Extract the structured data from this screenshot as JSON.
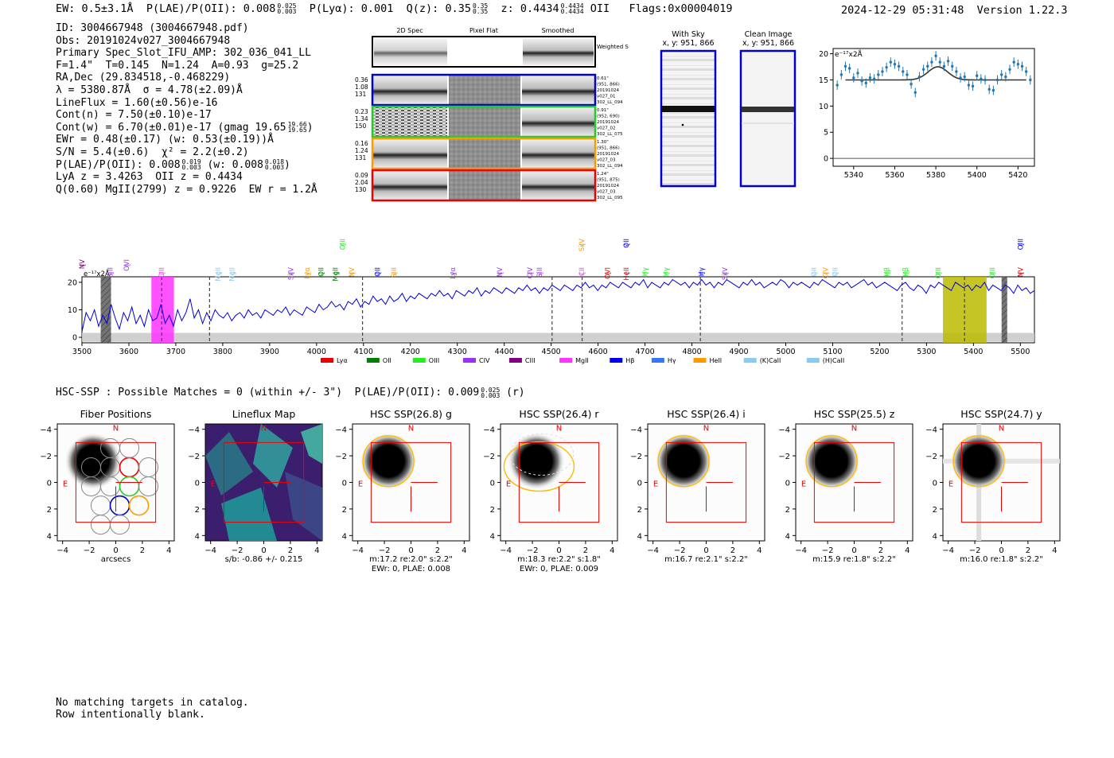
{
  "header": {
    "ew": "EW: 0.5±3.1Å",
    "plae_label": "P(LAE)/P(OII): 0.008",
    "plae_hi": "0.025",
    "plae_lo": "0.003",
    "plya": "P(Lyα): 0.001",
    "q_label": "Q(z): 0.35",
    "q_hi": "0.35",
    "q_lo": "0.35",
    "z_label": "z: 0.4434",
    "z_hi": "0.4434",
    "z_lo": "0.4434",
    "z_line": "OII",
    "flags": "Flags:0x00004019",
    "datestamp": "2024-12-29 05:31:48  Version 1.22.3"
  },
  "info": {
    "id": "ID: 3004667948 (3004667948.pdf)",
    "obs": "Obs: 20191024v027_3004667948",
    "primary": "Primary Spec_Slot_IFU_AMP: 302_036_041_LL",
    "fiber": "F=1.4\"  T=0.145  N=1.24  A=0.93  g=25.2",
    "radec": "RA,Dec (29.834518,-0.468229)",
    "lambda": "λ = 5380.87Å  σ = 4.78(±2.09)Å",
    "lineflux": "LineFlux = 1.60(±0.56)e-16",
    "contn": "Cont(n) = 7.50(±0.10)e-17",
    "contw": "Cont(w) = 6.70(±0.01)e-17 (gmag 19.65",
    "contw_hi": "19.66",
    "contw_lo": "19.65",
    "ewr": "EWr = 0.48(±0.17) (w: 0.53(±0.19))Å",
    "sn": "S/N = 5.4(±0.6)  χ² = 2.2(±0.2)",
    "plae": "P(LAE)/P(OII): 0.008",
    "plae_hi": "0.019",
    "plae_lo": "0.003",
    "plae_w": "(w: 0.008",
    "plae_w_hi": "0.018",
    "plae_w_lo": "0.003",
    "lya_z": "LyA z = 3.4263  OII z = 0.4434",
    "mgii": "Q(0.60) MgII(2799) z = 0.9226  EW r = 1.2Å"
  },
  "cutouts": {
    "col_headers": [
      "2D Spec",
      "Pixel Flat",
      "Smoothed"
    ],
    "weighted_sum_label": "Weighted Sum",
    "rows": [
      {
        "stats": [
          "0.36",
          "1.08",
          "131"
        ],
        "info": [
          "0.61\"",
          "(951, 866)",
          "20191024",
          "v027_01",
          "302_LL_094"
        ],
        "color": "#0000cc"
      },
      {
        "stats": [
          "0.23",
          "1.34",
          "150"
        ],
        "info": [
          "0.91\"",
          "(952, 690)",
          "20191024",
          "v027_02",
          "302_LL_075"
        ],
        "color": "#22cc22"
      },
      {
        "stats": [
          "0.16",
          "1.24",
          "131"
        ],
        "info": [
          "1.30\"",
          "(951, 866)",
          "20191024",
          "v027_03",
          "302_LL_094"
        ],
        "color": "#ff9900"
      },
      {
        "stats": [
          "0.09",
          "2.04",
          "130"
        ],
        "info": [
          "1.24\"",
          "(951, 875)",
          "20191024",
          "v027_03",
          "302_LL_095"
        ],
        "color": "#ee0000"
      }
    ],
    "with_sky": "With Sky",
    "with_sky_xy": "x, y: 951, 866",
    "clean": "Clean Image",
    "clean_xy": "x, y: 951, 866"
  },
  "zoom_chart": {
    "type": "scatter",
    "ylabel": "e⁻¹⁷x2Å",
    "xlim": [
      5330,
      5428
    ],
    "ylim": [
      -1.5,
      21
    ],
    "xticks": [
      5340,
      5360,
      5380,
      5400,
      5420
    ],
    "yticks": [
      0,
      5,
      10,
      15,
      20
    ],
    "continuum": 15,
    "gauss_center": 5381,
    "gauss_sigma": 4.78,
    "gauss_amp": 2.5,
    "x": [
      5332,
      5334,
      5336,
      5338,
      5340,
      5342,
      5344,
      5346,
      5348,
      5350,
      5352,
      5354,
      5356,
      5358,
      5360,
      5362,
      5364,
      5366,
      5368,
      5370,
      5372,
      5374,
      5376,
      5378,
      5380,
      5382,
      5384,
      5386,
      5388,
      5390,
      5392,
      5394,
      5396,
      5398,
      5400,
      5402,
      5404,
      5406,
      5408,
      5410,
      5412,
      5414,
      5416,
      5418,
      5420,
      5422,
      5424,
      5426
    ],
    "y": [
      14.0,
      16.0,
      17.6,
      17.2,
      15.4,
      16.3,
      14.8,
      14.4,
      15.4,
      15.2,
      16.0,
      16.6,
      17.4,
      18.4,
      18.0,
      17.6,
      16.6,
      16.0,
      14.2,
      12.6,
      15.6,
      17.0,
      17.6,
      18.4,
      19.6,
      18.4,
      17.6,
      18.6,
      17.6,
      16.6,
      15.4,
      15.6,
      14.0,
      13.8,
      15.8,
      15.2,
      15.0,
      13.2,
      13.0,
      15.0,
      16.0,
      15.6,
      17.0,
      18.4,
      18.0,
      17.6,
      16.6,
      15.0
    ],
    "err": 0.9
  },
  "main_chart": {
    "type": "line",
    "ylabel": "e⁻¹⁷x2Å",
    "xlim": [
      3500,
      5530
    ],
    "ylim": [
      -2,
      22
    ],
    "xticks": [
      3500,
      3600,
      3700,
      3800,
      3900,
      4000,
      4100,
      4200,
      4300,
      4400,
      4500,
      4600,
      4700,
      4800,
      4900,
      5000,
      5100,
      5200,
      5300,
      5400,
      5500
    ],
    "yticks": [
      0,
      10,
      20
    ],
    "flux": [
      2,
      9,
      6,
      10,
      4,
      8,
      5,
      12,
      7,
      3,
      9,
      6,
      11,
      5,
      8,
      4,
      10,
      6,
      7,
      12,
      5,
      8,
      4,
      10,
      6,
      9,
      14,
      7,
      10,
      5,
      9,
      6,
      10,
      8,
      7,
      9,
      6,
      8,
      9,
      7,
      10,
      8,
      9,
      7,
      10,
      9,
      8,
      10,
      9,
      11,
      8,
      10,
      9,
      8,
      11,
      10,
      9,
      12,
      10,
      11,
      13,
      11,
      12,
      10,
      13,
      12,
      14,
      11,
      13,
      12,
      15,
      13,
      14,
      12,
      15,
      13,
      14,
      16,
      13,
      15,
      14,
      16,
      15,
      14,
      16,
      15,
      17,
      15,
      16,
      14,
      17,
      16,
      15,
      17,
      16,
      18,
      15,
      17,
      16,
      18,
      17,
      16,
      18,
      17,
      16,
      18,
      17,
      19,
      17,
      18,
      16,
      18,
      17,
      19,
      18,
      17,
      19,
      18,
      17,
      19,
      18,
      20,
      18,
      19,
      17,
      19,
      18,
      20,
      19,
      18,
      20,
      19,
      18,
      20,
      19,
      21,
      18,
      20,
      19,
      18,
      20,
      19,
      21,
      20,
      19,
      20,
      18,
      20,
      19,
      21,
      19,
      20,
      18,
      20,
      19,
      21,
      20,
      19,
      18,
      20,
      19,
      21,
      19,
      20,
      18,
      19,
      20,
      19,
      21,
      20,
      18,
      20,
      19,
      20,
      19,
      18,
      20,
      19,
      21,
      20,
      19,
      18,
      20,
      19,
      20,
      18,
      19,
      20,
      21,
      19,
      20,
      18,
      19,
      20,
      19,
      18,
      17,
      19,
      20,
      18,
      17,
      19,
      18,
      16,
      19,
      18,
      20,
      19,
      18,
      17,
      20,
      19,
      18,
      19,
      17,
      19,
      18,
      20,
      17,
      19,
      18,
      17,
      19,
      18,
      16,
      19,
      17,
      18,
      16,
      17
    ],
    "legend": [
      {
        "label": "Lyα",
        "color": "#ee0000"
      },
      {
        "label": "OII",
        "color": "#008000"
      },
      {
        "label": "OIII",
        "color": "#22ee22"
      },
      {
        "label": "CIV",
        "color": "#9933ee"
      },
      {
        "label": "CIII",
        "color": "#800080"
      },
      {
        "label": "MgII",
        "color": "#ff33ff"
      },
      {
        "label": "Hβ",
        "color": "#0000ee"
      },
      {
        "label": "Hγ",
        "color": "#3377ff"
      },
      {
        "label": "HeII",
        "color": "#ff9900"
      },
      {
        "label": "(K)CaII",
        "color": "#88ccee"
      },
      {
        "label": "(H)CaII",
        "color": "#88ccee"
      }
    ],
    "line_labels": [
      {
        "label": "NV",
        "wave": 3500,
        "color": "#800080",
        "row": 1
      },
      {
        "label": "SiII",
        "wave": 3560,
        "color": "#9933ee",
        "row": 2
      },
      {
        "label": "OVI",
        "wave": 3595,
        "color": "#9933ee",
        "row": 1
      },
      {
        "label": "CIII",
        "wave": 3670,
        "color": "#ff33ff",
        "row": 2
      },
      {
        "label": "MgII",
        "wave": 3790,
        "color": "#88ccee",
        "row": 2
      },
      {
        "label": "MgII",
        "wave": 3820,
        "color": "#88ccee",
        "row": 2
      },
      {
        "label": "SiIV",
        "wave": 3945,
        "color": "#9933ee",
        "row": 2
      },
      {
        "label": "Lyα",
        "wave": 3980,
        "color": "#ff9900",
        "row": 2
      },
      {
        "label": "OII",
        "wave": 4010,
        "color": "#008000",
        "row": 2
      },
      {
        "label": "MgII",
        "wave": 4040,
        "color": "#008000",
        "row": 2
      },
      {
        "label": "OIII",
        "wave": 4055,
        "color": "#22ee22",
        "row": 0
      },
      {
        "label": "NV",
        "wave": 4075,
        "color": "#ff9900",
        "row": 2
      },
      {
        "label": "OII",
        "wave": 4130,
        "color": "#0000ee",
        "row": 2
      },
      {
        "label": "SiII",
        "wave": 4165,
        "color": "#ff9900",
        "row": 2
      },
      {
        "label": "Lyα",
        "wave": 4290,
        "color": "#9933ee",
        "row": 2
      },
      {
        "label": "NV",
        "wave": 4390,
        "color": "#9933ee",
        "row": 2
      },
      {
        "label": "CIV",
        "wave": 4455,
        "color": "#9933ee",
        "row": 2
      },
      {
        "label": "SiII",
        "wave": 4475,
        "color": "#9933ee",
        "row": 2
      },
      {
        "label": "CII",
        "wave": 4565,
        "color": "#ff33ff",
        "row": 2
      },
      {
        "label": "SiIV",
        "wave": 4565,
        "color": "#ff9900",
        "row": 0
      },
      {
        "label": "OVI",
        "wave": 4620,
        "color": "#ee0000",
        "row": 2
      },
      {
        "label": "OII",
        "wave": 4660,
        "color": "#0000ee",
        "row": 0
      },
      {
        "label": "HeII",
        "wave": 4660,
        "color": "#ee0000",
        "row": 2
      },
      {
        "label": "Hγ",
        "wave": 4700,
        "color": "#22ee22",
        "row": 2
      },
      {
        "label": "Hγ",
        "wave": 4745,
        "color": "#22ee22",
        "row": 2
      },
      {
        "label": "Hγ",
        "wave": 4820,
        "color": "#0000ee",
        "row": 2
      },
      {
        "label": "SiIV",
        "wave": 4870,
        "color": "#9933ee",
        "row": 2
      },
      {
        "label": "OII",
        "wave": 5060,
        "color": "#88ccee",
        "row": 2
      },
      {
        "label": "CIV",
        "wave": 5085,
        "color": "#ff9900",
        "row": 2
      },
      {
        "label": "OII",
        "wave": 5105,
        "color": "#88ccee",
        "row": 2
      },
      {
        "label": "Hβ",
        "wave": 5215,
        "color": "#22ee22",
        "row": 2
      },
      {
        "label": "Hβ",
        "wave": 5255,
        "color": "#22ee22",
        "row": 2
      },
      {
        "label": "OIII",
        "wave": 5325,
        "color": "#22ee22",
        "row": 2
      },
      {
        "label": "OIII",
        "wave": 5440,
        "color": "#22ee22",
        "row": 2
      },
      {
        "label": "OIII",
        "wave": 5500,
        "color": "#0000ee",
        "row": 0
      },
      {
        "label": "NV",
        "wave": 5500,
        "color": "#ee0000",
        "row": 2
      }
    ],
    "dashed_lines": [
      3670,
      3772,
      4098,
      4502,
      4566,
      4818,
      5248,
      5381
    ],
    "bands": [
      {
        "from": 3540,
        "to": 3562,
        "color": "#555555",
        "hatch": true
      },
      {
        "from": 3648,
        "to": 3696,
        "color": "#ff33ff",
        "hatch": false
      },
      {
        "from": 5335,
        "to": 5428,
        "color": "#bbbb00",
        "hatch": false
      },
      {
        "from": 5460,
        "to": 5472,
        "color": "#555555",
        "hatch": true
      }
    ]
  },
  "hsc": {
    "summary": "HSC-SSP : Possible Matches = 0 (within +/- 3\")  P(LAE)/P(OII): 0.009",
    "summary_hi": "0.025",
    "summary_lo": "0.003",
    "summary_band": "(r)",
    "panels": [
      {
        "title": "Fiber Positions",
        "captions": [
          "arcsecs"
        ],
        "kind": "fiber"
      },
      {
        "title": "Lineflux Map",
        "captions": [
          "s/b: -0.86 +/- 0.215"
        ],
        "kind": "lineflux"
      },
      {
        "title": "HSC SSP(26.8) g",
        "captions": [
          "m:17.2  re:2.0\"  s:2.2\"",
          "EWr: 0, PLAE: 0.008"
        ],
        "kind": "img"
      },
      {
        "title": "HSC SSP(26.4) r",
        "captions": [
          "m:18.3  re:2.2\"  s:1.8\"",
          "EWr: 0, PLAE: 0.009"
        ],
        "kind": "img_r"
      },
      {
        "title": "HSC SSP(26.4) i",
        "captions": [
          "m:16.7  re:2.1\"  s:2.2\""
        ],
        "kind": "img"
      },
      {
        "title": "HSC SSP(25.5) z",
        "captions": [
          "m:15.9  re:1.8\"  s:2.2\""
        ],
        "kind": "img"
      },
      {
        "title": "HSC SSP(24.7) y",
        "captions": [
          "m:16.0  re:1.8\"  s:2.2\""
        ],
        "kind": "img_y"
      }
    ],
    "north_label": "N",
    "east_label": "E",
    "ticks": [
      "−4",
      "−2",
      "0",
      "2",
      "4"
    ]
  },
  "footer": {
    "line1": "No matching targets in catalog.",
    "line2": "Row intentionally blank."
  }
}
